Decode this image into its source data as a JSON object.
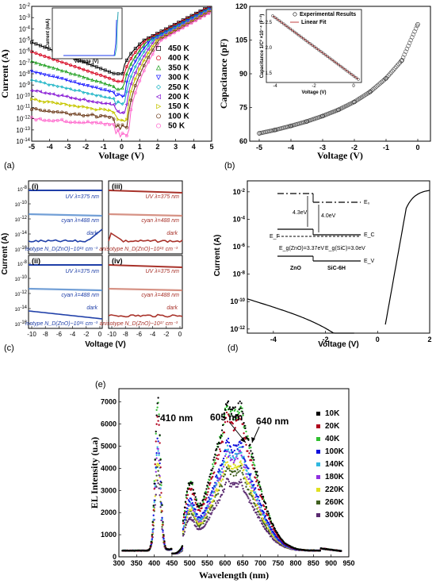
{
  "panels": [
    {
      "id": "a",
      "tag": "(a)",
      "type": "line",
      "xlabel": "Voltage (V)",
      "ylabel": "Current (A)",
      "xticks": [
        "-5",
        "-4",
        "-3",
        "-2",
        "-1",
        "0",
        "1",
        "2",
        "3",
        "4",
        "5"
      ],
      "yticks": [
        "10^-14",
        "10^-13",
        "10^-12",
        "10^-11",
        "10^-10",
        "10^-9",
        "10^-8",
        "10^-7",
        "10^-6",
        "10^-5",
        "10^-4",
        "10^-3",
        "10^-2"
      ],
      "xlim": [
        -5,
        5
      ],
      "ylim_log10": [
        -14,
        -2
      ],
      "inset": {
        "xlabel": "Voltage (V)",
        "ylabel": "Current (mA)"
      },
      "series": [
        {
          "name": "450  K",
          "color": "#000000",
          "marker": "square"
        },
        {
          "name": "400  K",
          "color": "#d6001c",
          "marker": "circle"
        },
        {
          "name": "350  K",
          "color": "#20a020",
          "marker": "triangle-up"
        },
        {
          "name": "300  K",
          "color": "#1a1aff",
          "marker": "triangle-down"
        },
        {
          "name": "250  K",
          "color": "#1fb5c6",
          "marker": "diamond"
        },
        {
          "name": "200  K",
          "color": "#8a1fd6",
          "marker": "triangle-left"
        },
        {
          "name": "150  K",
          "color": "#c6c600",
          "marker": "triangle-right"
        },
        {
          "name": "100  K",
          "color": "#6b3a1a",
          "marker": "hexagon"
        },
        {
          "name": "50  K",
          "color": "#ff66cc",
          "marker": "circle"
        }
      ]
    },
    {
      "id": "b",
      "tag": "(b)",
      "type": "scatter",
      "xlabel": "Voltage (V)",
      "ylabel": "Capacitance (pF)",
      "xticks": [
        "-5",
        "-4",
        "-3",
        "-2",
        "-1",
        "0"
      ],
      "yticks": [
        "60",
        "75",
        "90",
        "105",
        "120"
      ],
      "xlim": [
        -5,
        0.4
      ],
      "ylim": [
        60,
        120
      ],
      "x": [
        -5,
        -4.5,
        -4,
        -3.5,
        -3,
        -2.5,
        -2,
        -1.5,
        -1,
        -0.5,
        0
      ],
      "y": [
        63.5,
        65,
        66.8,
        68.8,
        71.2,
        74,
        77.5,
        82,
        88,
        96,
        112
      ],
      "inset": {
        "xlabel": "Voltage (V)",
        "ylabel": "Capacitance 1/C² ×10⁻⁴ (F⁻²)",
        "xticks": [
          "-4",
          "-2",
          "0"
        ],
        "yticks": [
          "1.5",
          "2.0",
          "2.5"
        ],
        "legend": [
          "Experimental Results",
          "Linear Fit"
        ]
      }
    },
    {
      "id": "c",
      "tag": "(c)",
      "type": "line",
      "xlabel": "Voltage (V)",
      "ylabel": "Current (A)",
      "xticks": [
        "-10",
        "-8",
        "-6",
        "-4",
        "-2",
        "0"
      ],
      "yticks": [
        "10^-8",
        "10^-10",
        "10^-12",
        "10^-14",
        "10^-16"
      ],
      "subpanels": [
        {
          "tag": "(i)",
          "uv": "UV λ=375 nm",
          "cyan": "cyan λ=488 nm",
          "dark": "dark",
          "note": ""
        },
        {
          "tag": "(iii)",
          "uv": "UV λ=375 nm",
          "cyan": "cyan λ=488 nm",
          "dark": "dark",
          "note": "anisotype N_D(ZnO)~10¹⁸ cm⁻³"
        },
        {
          "tag": "(ii)",
          "uv": "UV λ=375 nm",
          "cyan": "cyan λ=488 nm",
          "dark": "dark",
          "note": "isotype N_D(ZnO)~10¹⁶ cm⁻³"
        },
        {
          "tag": "(iv)",
          "uv": "UV λ=375 nm",
          "cyan": "cyan λ=488 nm",
          "dark": "dark",
          "note": "anisotype N_D(ZnO)~10¹⁷ cm⁻³"
        }
      ],
      "note_i": "isotype N_D(ZnO)~10¹⁸ cm⁻³"
    },
    {
      "id": "d",
      "tag": "(d)",
      "type": "line",
      "xlabel": "Voltage (V)",
      "ylabel": "Current (A)",
      "xticks": [
        "-4",
        "-2",
        "0",
        "2"
      ],
      "yticks": [
        "10^-12",
        "10^-10",
        "10^-8",
        "10^-6",
        "10^-4",
        "10^-2"
      ],
      "xlim": [
        -5,
        2
      ],
      "ylim_log10": [
        -12.3,
        -1.2
      ],
      "band_diagram": {
        "E0": "E₀",
        "Ec": "E_C",
        "Ef": "E_F",
        "Ev": "E_V",
        "zno_affinity": "4.3eV",
        "sic_affinity": "4.0eV",
        "zno_gap": "E_g(ZnO)=3.37eV",
        "sic_gap": "E_g(SiC)=3.0eV",
        "zno": "ZnO",
        "sic": "SiC-6H"
      }
    },
    {
      "id": "e",
      "tag": "(e)",
      "type": "scatter",
      "xlabel": "Wavelength (nm)",
      "ylabel": "EL Intensity  (u.a)",
      "xticks": [
        "300",
        "350",
        "400",
        "450",
        "500",
        "550",
        "600",
        "650",
        "700",
        "750",
        "800",
        "850",
        "900",
        "950"
      ],
      "yticks": [
        "0",
        "1000",
        "2000",
        "3000",
        "4000",
        "5000",
        "6000",
        "7000"
      ],
      "xlim": [
        300,
        950
      ],
      "ylim": [
        0,
        7600
      ],
      "peaks": [
        "410 nm",
        "605 nm",
        "640 nm"
      ],
      "series": [
        {
          "name": "10K",
          "color": "#000000"
        },
        {
          "name": "20K",
          "color": "#b0001c"
        },
        {
          "name": "40K",
          "color": "#30c030"
        },
        {
          "name": "100K",
          "color": "#1010dd"
        },
        {
          "name": "140K",
          "color": "#30b8e0"
        },
        {
          "name": "180K",
          "color": "#9030e0"
        },
        {
          "name": "220K",
          "color": "#e0e020"
        },
        {
          "name": "260K",
          "color": "#406020"
        },
        {
          "name": "300K",
          "color": "#5a2a70"
        }
      ],
      "peak_scale": [
        6800,
        6100,
        6700,
        5000,
        4700,
        4500,
        4100,
        3800,
        3200
      ]
    }
  ],
  "colors": {
    "uv": "#1f3fa8",
    "uv_r": "#a8322a",
    "cyan_b": "#5a8fd0",
    "cyan_r": "#d08070",
    "dark_b": "#1f3fa8",
    "dark_r": "#a8322a"
  }
}
